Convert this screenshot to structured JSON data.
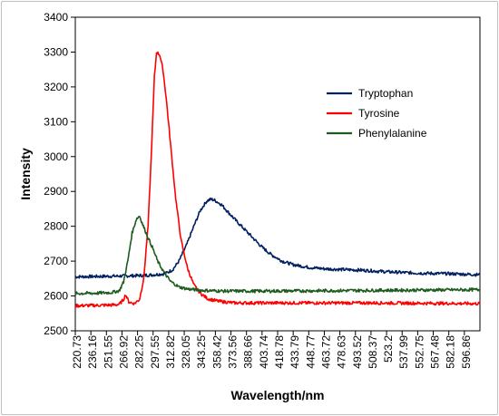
{
  "chart_data": {
    "type": "line",
    "title": "",
    "xlabel": "Wavelength/nm",
    "ylabel": "Intensity",
    "ylim": [
      2500,
      3400
    ],
    "yticks": [
      "2500",
      "2600",
      "2700",
      "2800",
      "2900",
      "3000",
      "3100",
      "3200",
      "3300",
      "3400"
    ],
    "xlim": [
      220.73,
      600.6
    ],
    "xticks": [
      "220.73",
      "236.16",
      "251.55",
      "266.92",
      "282.25",
      "297.55",
      "312.82",
      "328.05",
      "343.25",
      "358.42",
      "373.56",
      "388.66",
      "403.74",
      "418.78",
      "433.79",
      "448.77",
      "463.72",
      "478.63",
      "493.52",
      "508.37",
      "523.2",
      "537.99",
      "552.75",
      "567.48",
      "582.18",
      "596.86"
    ],
    "grid": false,
    "legend_position": "top-right",
    "series": [
      {
        "name": "Tryptophan",
        "color": "#002060",
        "points": [
          [
            220.73,
            2655
          ],
          [
            240,
            2656
          ],
          [
            260,
            2657
          ],
          [
            275,
            2658
          ],
          [
            285,
            2659
          ],
          [
            295,
            2661
          ],
          [
            305,
            2664
          ],
          [
            312,
            2675
          ],
          [
            318,
            2700
          ],
          [
            325,
            2745
          ],
          [
            332,
            2800
          ],
          [
            338,
            2845
          ],
          [
            344,
            2872
          ],
          [
            348,
            2878
          ],
          [
            352,
            2874
          ],
          [
            358,
            2862
          ],
          [
            365,
            2838
          ],
          [
            372,
            2815
          ],
          [
            380,
            2790
          ],
          [
            388,
            2765
          ],
          [
            396,
            2740
          ],
          [
            405,
            2718
          ],
          [
            415,
            2700
          ],
          [
            425,
            2690
          ],
          [
            440,
            2682
          ],
          [
            455,
            2678
          ],
          [
            470,
            2676
          ],
          [
            490,
            2674
          ],
          [
            510,
            2670
          ],
          [
            530,
            2667
          ],
          [
            550,
            2665
          ],
          [
            570,
            2664
          ],
          [
            590,
            2662
          ],
          [
            600.6,
            2661
          ]
        ]
      },
      {
        "name": "Tyrosine",
        "color": "#ff0000",
        "points": [
          [
            220.73,
            2572
          ],
          [
            240,
            2573
          ],
          [
            255,
            2574
          ],
          [
            262,
            2576
          ],
          [
            266,
            2590
          ],
          [
            268,
            2604
          ],
          [
            271,
            2583
          ],
          [
            276,
            2578
          ],
          [
            281,
            2590
          ],
          [
            285,
            2650
          ],
          [
            289,
            2800
          ],
          [
            292,
            3000
          ],
          [
            295,
            3230
          ],
          [
            297,
            3300
          ],
          [
            300,
            3292
          ],
          [
            303,
            3250
          ],
          [
            306,
            3170
          ],
          [
            310,
            3040
          ],
          [
            315,
            2880
          ],
          [
            320,
            2760
          ],
          [
            326,
            2680
          ],
          [
            332,
            2632
          ],
          [
            338,
            2608
          ],
          [
            345,
            2592
          ],
          [
            355,
            2585
          ],
          [
            370,
            2580
          ],
          [
            400,
            2580
          ],
          [
            450,
            2580
          ],
          [
            500,
            2580
          ],
          [
            550,
            2579
          ],
          [
            600.6,
            2578
          ]
        ]
      },
      {
        "name": "Phenylalanine",
        "color": "#1e5b1e",
        "points": [
          [
            220.73,
            2607
          ],
          [
            240,
            2608
          ],
          [
            255,
            2610
          ],
          [
            262,
            2615
          ],
          [
            266,
            2640
          ],
          [
            270,
            2700
          ],
          [
            274,
            2780
          ],
          [
            278,
            2820
          ],
          [
            281,
            2830
          ],
          [
            284,
            2805
          ],
          [
            288,
            2775
          ],
          [
            293,
            2740
          ],
          [
            298,
            2700
          ],
          [
            304,
            2668
          ],
          [
            310,
            2642
          ],
          [
            318,
            2626
          ],
          [
            326,
            2620
          ],
          [
            340,
            2616
          ],
          [
            360,
            2614
          ],
          [
            400,
            2614
          ],
          [
            450,
            2615
          ],
          [
            500,
            2616
          ],
          [
            550,
            2617
          ],
          [
            600.6,
            2618
          ]
        ]
      }
    ]
  }
}
